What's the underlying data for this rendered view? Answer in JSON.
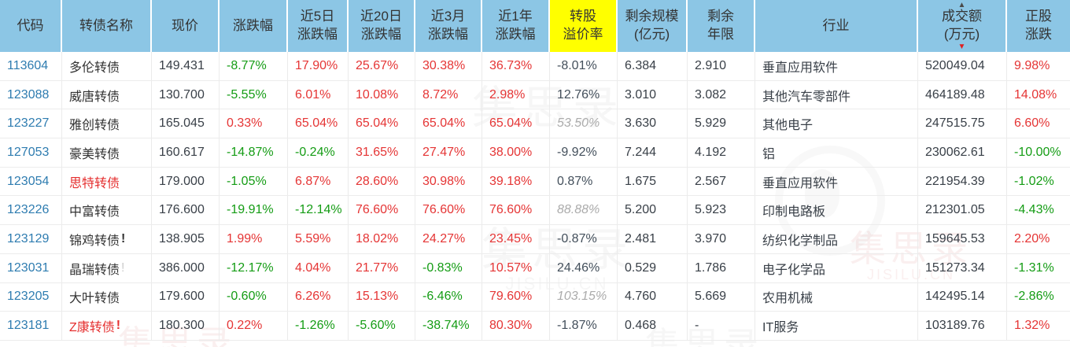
{
  "table": {
    "columns": [
      {
        "key": "code",
        "label": "代码"
      },
      {
        "key": "name",
        "label": "转债名称"
      },
      {
        "key": "price",
        "label": "现价"
      },
      {
        "key": "chg",
        "label": "涨跌幅"
      },
      {
        "key": "chg5d",
        "label": "近5日\n涨跌幅"
      },
      {
        "key": "chg20d",
        "label": "近20日\n涨跌幅"
      },
      {
        "key": "chg3m",
        "label": "近3月\n涨跌幅"
      },
      {
        "key": "chg1y",
        "label": "近1年\n涨跌幅"
      },
      {
        "key": "premium",
        "label": "转股\n溢价率",
        "highlight": true
      },
      {
        "key": "scale",
        "label": "剩余规模\n(亿元)"
      },
      {
        "key": "years",
        "label": "剩余\n年限"
      },
      {
        "key": "industry",
        "label": "行业"
      },
      {
        "key": "turnover",
        "label": "成交额\n(万元)",
        "sorted": true
      },
      {
        "key": "stock",
        "label": "正股\n涨跌"
      }
    ],
    "sort": {
      "column": "turnover",
      "direction": "desc"
    },
    "rows": [
      {
        "code": "113604",
        "name": "多伦转债",
        "price": "149.431",
        "chg": "-8.77%",
        "chg5d": "17.90%",
        "chg20d": "25.67%",
        "chg3m": "30.38%",
        "chg1y": "36.73%",
        "premium": "-8.01%",
        "premium_est": false,
        "scale": "6.384",
        "years": "2.910",
        "industry": "垂直应用软件",
        "turnover": "520049.04",
        "stock": "9.98%"
      },
      {
        "code": "123088",
        "name": "威唐转债",
        "price": "130.700",
        "chg": "-5.55%",
        "chg5d": "6.01%",
        "chg20d": "10.08%",
        "chg3m": "8.72%",
        "chg1y": "2.98%",
        "premium": "12.76%",
        "premium_est": false,
        "scale": "3.010",
        "years": "3.082",
        "industry": "其他汽车零部件",
        "turnover": "464189.48",
        "stock": "14.08%"
      },
      {
        "code": "123227",
        "name": "雅创转债",
        "price": "165.045",
        "chg": "0.33%",
        "chg5d": "65.04%",
        "chg20d": "65.04%",
        "chg3m": "65.04%",
        "chg1y": "65.04%",
        "premium": "53.50%",
        "premium_est": true,
        "scale": "3.630",
        "years": "5.929",
        "industry": "其他电子",
        "turnover": "247515.75",
        "stock": "6.60%"
      },
      {
        "code": "127053",
        "name": "豪美转债",
        "price": "160.617",
        "chg": "-14.87%",
        "chg5d": "-0.24%",
        "chg20d": "31.65%",
        "chg3m": "27.47%",
        "chg1y": "38.00%",
        "premium": "-9.92%",
        "premium_est": false,
        "scale": "7.244",
        "years": "4.192",
        "industry": "铝",
        "turnover": "230062.61",
        "stock": "-10.00%"
      },
      {
        "code": "123054",
        "name": "思特转债",
        "name_red": true,
        "price": "179.000",
        "chg": "-1.05%",
        "chg5d": "6.87%",
        "chg20d": "28.60%",
        "chg3m": "30.98%",
        "chg1y": "39.18%",
        "premium": "0.87%",
        "premium_est": false,
        "scale": "1.675",
        "years": "2.567",
        "industry": "垂直应用软件",
        "turnover": "221954.39",
        "stock": "-1.02%"
      },
      {
        "code": "123226",
        "name": "中富转债",
        "price": "176.600",
        "chg": "-19.91%",
        "chg5d": "-12.14%",
        "chg20d": "76.60%",
        "chg3m": "76.60%",
        "chg1y": "76.60%",
        "premium": "88.88%",
        "premium_est": true,
        "scale": "5.200",
        "years": "5.923",
        "industry": "印制电路板",
        "turnover": "212301.05",
        "stock": "-4.43%"
      },
      {
        "code": "123129",
        "name": "锦鸡转债",
        "mark": "!",
        "mark_color": "dark",
        "price": "138.905",
        "chg": "1.99%",
        "chg5d": "5.59%",
        "chg20d": "18.02%",
        "chg3m": "24.27%",
        "chg1y": "23.45%",
        "premium": "-0.87%",
        "premium_est": false,
        "scale": "2.481",
        "years": "3.970",
        "industry": "纺织化学制品",
        "turnover": "159645.53",
        "stock": "2.20%"
      },
      {
        "code": "123031",
        "name": "晶瑞转债",
        "mark": "!",
        "mark_color": "gray",
        "price": "386.000",
        "chg": "-12.17%",
        "chg5d": "4.04%",
        "chg20d": "21.77%",
        "chg3m": "-0.83%",
        "chg1y": "10.57%",
        "premium": "24.46%",
        "premium_est": false,
        "scale": "0.529",
        "years": "1.786",
        "industry": "电子化学品",
        "turnover": "151273.34",
        "stock": "-1.31%"
      },
      {
        "code": "123205",
        "name": "大叶转债",
        "price": "179.600",
        "chg": "-0.60%",
        "chg5d": "6.26%",
        "chg20d": "15.13%",
        "chg3m": "-6.46%",
        "chg1y": "79.60%",
        "premium": "103.15%",
        "premium_est": true,
        "scale": "4.760",
        "years": "5.669",
        "industry": "农用机械",
        "turnover": "142495.14",
        "stock": "-2.86%"
      },
      {
        "code": "123181",
        "name": "Z康转债",
        "name_red": true,
        "mark": "!",
        "mark_color": "red",
        "price": "180.300",
        "chg": "0.22%",
        "chg5d": "-1.26%",
        "chg20d": "-5.60%",
        "chg3m": "-38.74%",
        "chg1y": "80.30%",
        "premium": "-1.87%",
        "premium_est": false,
        "scale": "0.468",
        "years": "-",
        "industry": "IT服务",
        "turnover": "103189.76",
        "stock": "1.32%"
      }
    ]
  },
  "colors": {
    "header_bg": "#8cc6e5",
    "premium_header_bg": "#ffff00",
    "code_link": "#2e7cb0",
    "positive": "#e53535",
    "negative": "#149c14",
    "estimated_gray": "#ababab",
    "sort_desc_arrow": "#e02020"
  },
  "watermark": {
    "text": "集思录",
    "subtext": "JISILU.CN"
  }
}
